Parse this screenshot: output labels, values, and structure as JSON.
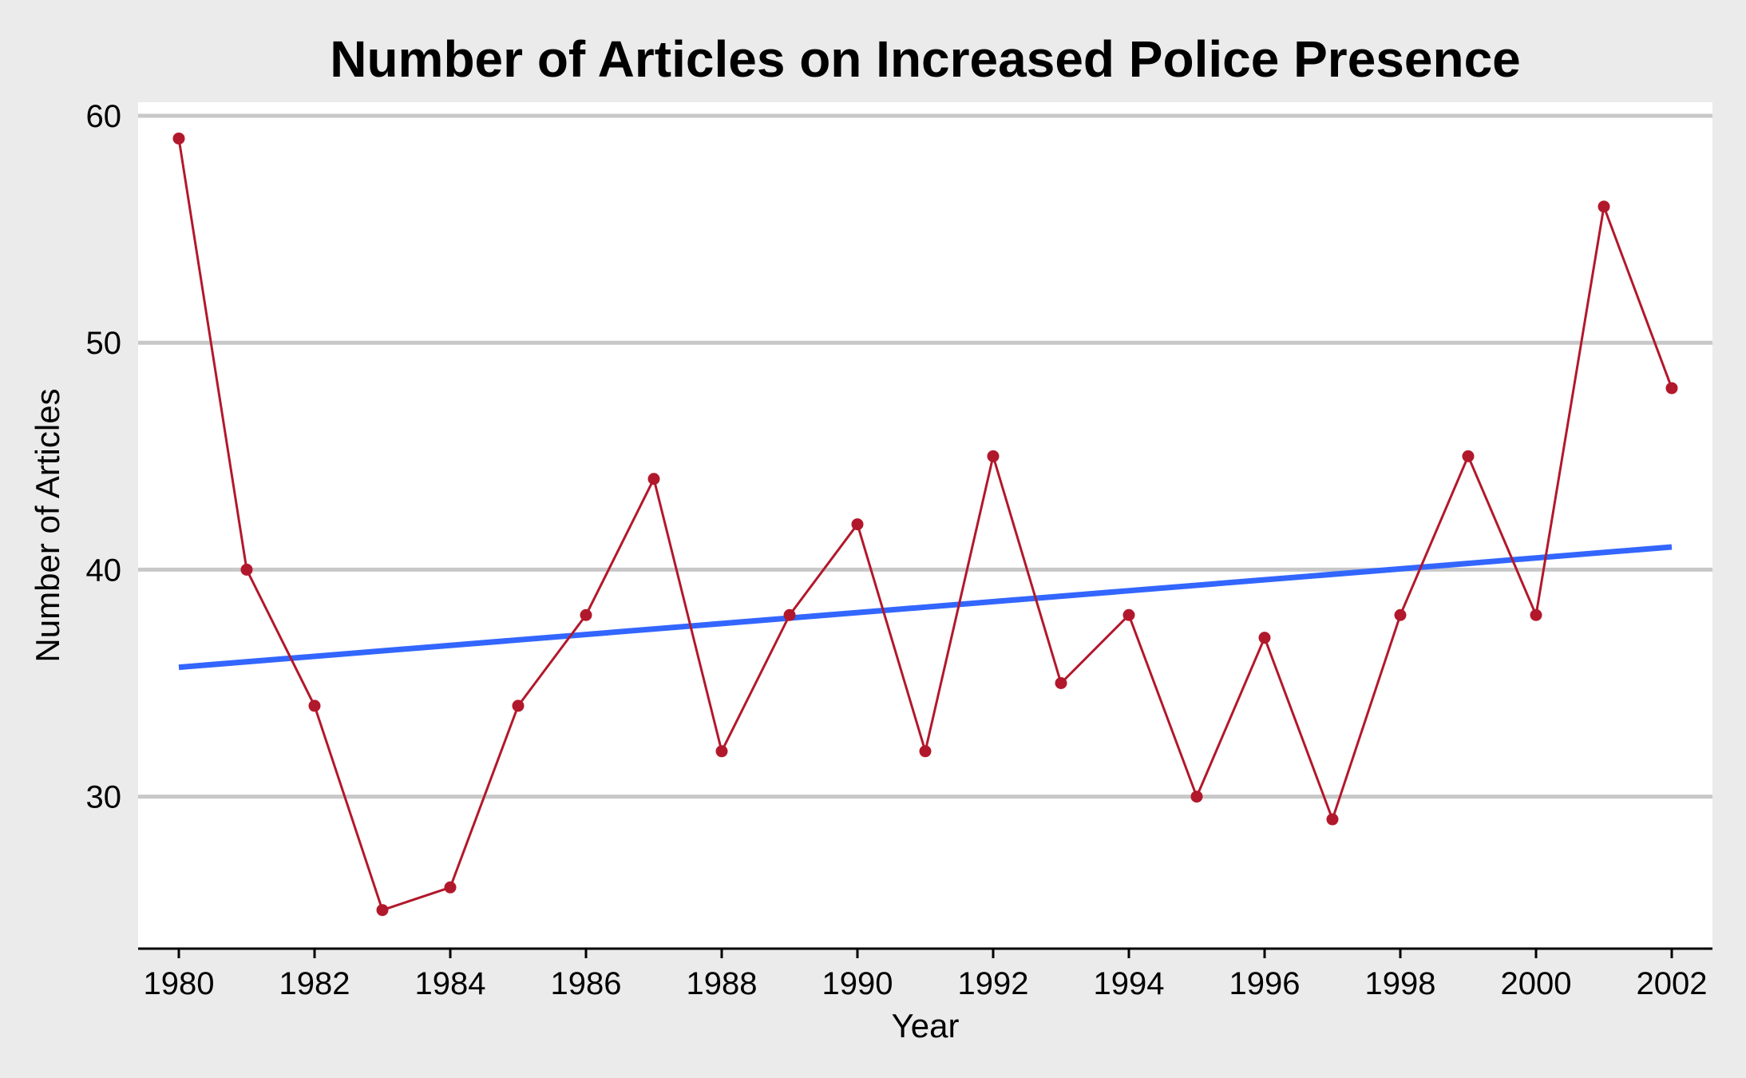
{
  "chart_data": {
    "type": "line",
    "title": "Number of Articles on Increased Police Presence",
    "xlabel": "Year",
    "ylabel": "Number of Articles",
    "xlim": [
      1979.4,
      2002.6
    ],
    "ylim": [
      23.3,
      60.6
    ],
    "x_ticks": [
      1980,
      1982,
      1984,
      1986,
      1988,
      1990,
      1992,
      1994,
      1996,
      1998,
      2000,
      2002
    ],
    "y_ticks": [
      30,
      40,
      50,
      60
    ],
    "grid": "horizontal",
    "colors": {
      "series": "#b2182b",
      "trend": "#3366ff",
      "grid": "#c8c8c8",
      "background": "#ebebeb",
      "panel": "#ffffff"
    },
    "series": [
      {
        "x": [
          1980,
          1981,
          1982,
          1983,
          1984,
          1985,
          1986,
          1987,
          1988,
          1989,
          1990,
          1991,
          1992,
          1993,
          1994,
          1995,
          1996,
          1997,
          1998,
          1999,
          2000,
          2001,
          2002
        ],
        "values": [
          59,
          40,
          34,
          25,
          26,
          34,
          38,
          44,
          32,
          38,
          42,
          32,
          45,
          35,
          38,
          30,
          37,
          29,
          38,
          45,
          38,
          56,
          48
        ]
      }
    ],
    "trend": {
      "x": [
        1980,
        2002
      ],
      "values": [
        35.7,
        41.0
      ]
    }
  }
}
